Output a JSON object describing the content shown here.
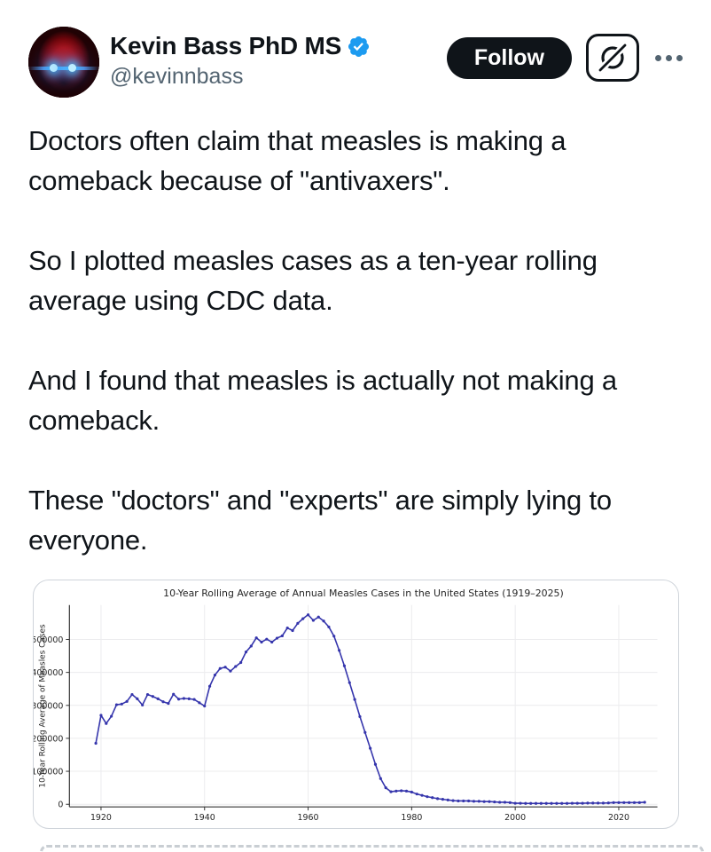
{
  "header": {
    "name": "Kevin Bass PhD MS",
    "handle": "@kevinnbass",
    "follow_button": "Follow",
    "icons": {
      "verified": "verified-badge-icon",
      "grok": "grok-slashed-circle-icon",
      "more": "more-ellipsis-icon"
    },
    "colors": {
      "verified_blue": "#1d9bf0",
      "follow_bg": "#0f1419",
      "handle_gray": "#536471"
    }
  },
  "tweet": {
    "paragraphs": [
      "Doctors often claim that measles is making a comeback because of \"antivaxers\".",
      "So I plotted measles cases as a ten-year rolling average using CDC data.",
      "And I found that measles is actually not making a comeback.",
      "These \"doctors\" and \"experts\" are simply lying to everyone."
    ]
  },
  "chart_data": {
    "type": "line",
    "title": "10-Year Rolling Average of Annual Measles Cases in the United States (1919–2025)",
    "xlabel": "",
    "ylabel": "10-Year Rolling Average of Measles Cases",
    "x_ticks": [
      1920,
      1940,
      1960,
      1980,
      2000,
      2020
    ],
    "y_ticks": [
      0,
      100000,
      200000,
      300000,
      400000,
      500000
    ],
    "xlim": [
      1914,
      2030
    ],
    "ylim": [
      0,
      610000
    ],
    "grid": true,
    "legend": "none",
    "line_color": "#3535ac",
    "marker": "dot",
    "series": [
      {
        "name": "10-year rolling average of measles cases",
        "x": [
          1919,
          1920,
          1921,
          1922,
          1923,
          1924,
          1925,
          1926,
          1927,
          1928,
          1929,
          1930,
          1931,
          1932,
          1933,
          1934,
          1935,
          1936,
          1937,
          1938,
          1939,
          1940,
          1941,
          1942,
          1943,
          1944,
          1945,
          1946,
          1947,
          1948,
          1949,
          1950,
          1951,
          1952,
          1953,
          1954,
          1955,
          1956,
          1957,
          1958,
          1959,
          1960,
          1961,
          1962,
          1963,
          1964,
          1965,
          1966,
          1967,
          1968,
          1969,
          1970,
          1971,
          1972,
          1973,
          1974,
          1975,
          1976,
          1977,
          1978,
          1979,
          1980,
          1981,
          1982,
          1983,
          1984,
          1985,
          1986,
          1987,
          1988,
          1989,
          1990,
          1991,
          1992,
          1993,
          1994,
          1995,
          1996,
          1997,
          1998,
          1999,
          2000,
          2001,
          2002,
          2003,
          2004,
          2005,
          2006,
          2007,
          2008,
          2009,
          2010,
          2011,
          2012,
          2013,
          2014,
          2015,
          2016,
          2017,
          2018,
          2019,
          2020,
          2021,
          2022,
          2023,
          2024,
          2025
        ],
        "values": [
          185000,
          270000,
          245000,
          267000,
          302000,
          304000,
          312000,
          333000,
          320000,
          301000,
          333000,
          327000,
          320000,
          311000,
          306000,
          334000,
          319000,
          321000,
          320000,
          318000,
          308000,
          298000,
          358000,
          392000,
          412000,
          416000,
          404000,
          418000,
          430000,
          462000,
          480000,
          505000,
          492000,
          501000,
          492000,
          504000,
          511000,
          535000,
          527000,
          549000,
          563000,
          575000,
          558000,
          568000,
          556000,
          538000,
          510000,
          467000,
          420000,
          369000,
          318000,
          266000,
          218000,
          170000,
          121000,
          78000,
          50000,
          38000,
          40000,
          41000,
          40000,
          37000,
          31000,
          27000,
          23000,
          20000,
          17000,
          15000,
          13000,
          11000,
          10000,
          10000,
          10000,
          9000,
          9000,
          8000,
          8000,
          7000,
          6000,
          6000,
          5000,
          3000,
          3000,
          2500,
          2500,
          2500,
          2500,
          2500,
          2500,
          2500,
          2500,
          2500,
          3000,
          3000,
          3000,
          3500,
          3500,
          3500,
          3500,
          4000,
          5000,
          5000,
          5000,
          5000,
          5000,
          5000,
          6000
        ]
      }
    ]
  }
}
